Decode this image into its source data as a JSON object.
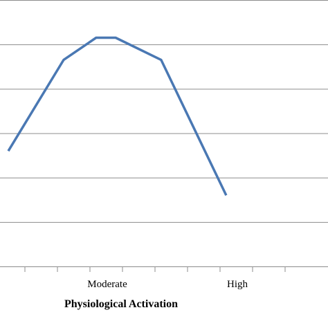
{
  "chart_data": {
    "type": "line",
    "title": "",
    "xlabel": "Physiological Activation",
    "ylabel": "",
    "categories": [
      "",
      "",
      "",
      "Moderate",
      "",
      "",
      "",
      "High"
    ],
    "ylim": [
      0,
      6
    ],
    "grid": true,
    "series": [
      {
        "color": "#4a78b3",
        "x": [
          0,
          1.7,
          2.7,
          3.3,
          4.7,
          6.7
        ],
        "values": [
          2.6,
          4.65,
          5.15,
          5.15,
          4.65,
          1.6
        ]
      }
    ]
  }
}
